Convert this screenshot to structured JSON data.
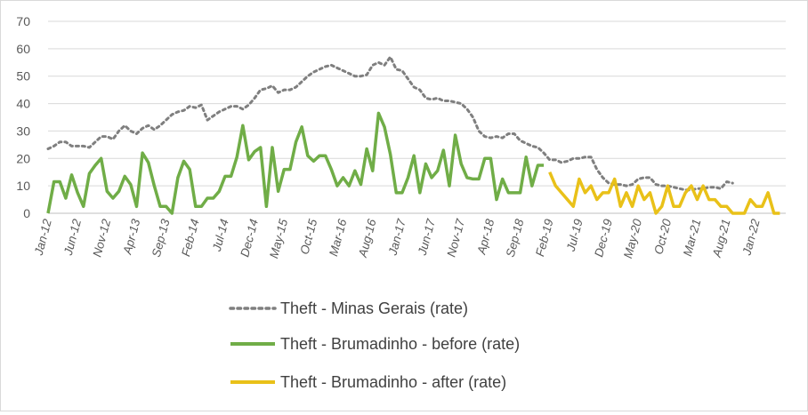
{
  "chart_data": {
    "type": "line",
    "yticks": [
      "0",
      "10",
      "20",
      "30",
      "40",
      "50",
      "60",
      "70"
    ],
    "ylim": [
      0,
      70
    ],
    "x_tick_labels": [
      "Jan-12",
      "Jun-12",
      "Nov-12",
      "Apr-13",
      "Sep-13",
      "Feb-14",
      "Jul-14",
      "Dec-14",
      "May-15",
      "Oct-15",
      "Mar-16",
      "Aug-16",
      "Jan-17",
      "Jun-17",
      "Nov-17",
      "Apr-18",
      "Sep-18",
      "Feb-19",
      "Jul-19",
      "Dec-19",
      "May-20",
      "Oct-20",
      "Mar-21",
      "Aug-21",
      "Jan-22"
    ],
    "months_start": "Jan-12",
    "months_end": "Jun-22",
    "grid": "horizontal",
    "legend_position": "bottom",
    "series": [
      {
        "name": "Theft - Minas Gerais (rate)",
        "color": "#7f7f7f",
        "style": "dotted",
        "x_start": "Jan-12",
        "values": [
          23.5,
          24.5,
          26,
          26,
          24.5,
          24.5,
          24.5,
          24,
          26,
          28,
          28,
          27,
          30,
          32,
          30,
          29,
          31,
          32,
          30.5,
          32,
          34,
          36,
          37,
          37.5,
          39,
          38.5,
          39.5,
          34,
          35.5,
          37,
          38,
          39,
          39,
          38,
          39.5,
          42,
          45,
          45.5,
          46.5,
          44,
          45,
          45,
          46,
          48,
          50,
          51.5,
          52.5,
          53.5,
          54,
          53,
          52,
          51,
          50,
          50,
          50.5,
          54,
          55,
          54,
          57,
          52.5,
          52,
          49,
          46,
          45,
          42,
          41.5,
          42,
          41,
          41,
          40.5,
          40,
          38,
          35,
          30,
          28,
          27.5,
          28,
          27.5,
          29,
          29,
          26.5,
          25.5,
          24.5,
          24,
          22,
          19.5,
          19.5,
          18.5,
          19,
          20,
          20,
          20.5,
          20.5,
          16,
          13,
          11,
          10.5,
          10.5,
          10,
          10.5,
          12.5,
          13,
          13,
          10.5,
          10,
          10,
          9.5,
          9,
          8.5,
          8.5,
          9,
          9,
          9.5,
          9.5,
          9,
          11.5,
          11
        ]
      },
      {
        "name": "Theft - Brumadinho - before (rate)",
        "color": "#70ad47",
        "style": "solid",
        "x_start": "Jan-12",
        "values": [
          0,
          11.5,
          11.5,
          5.5,
          14,
          7.5,
          2.5,
          14.5,
          17.5,
          20,
          8,
          5.5,
          8,
          13.5,
          10.5,
          2.5,
          22,
          18.5,
          10,
          2.5,
          2.5,
          0,
          13,
          19,
          16,
          2.5,
          2.5,
          5.5,
          5.5,
          8,
          13.5,
          13.5,
          20.5,
          32,
          19.5,
          22.5,
          24,
          2.5,
          24,
          8,
          16,
          16,
          26,
          31.5,
          21,
          19,
          21,
          21,
          16,
          10,
          13,
          10,
          15.5,
          10.5,
          23.5,
          15.5,
          36.5,
          31.5,
          21.5,
          7.5,
          7.5,
          13,
          21,
          7.5,
          18,
          13,
          15.5,
          23,
          10,
          28.5,
          18,
          13,
          12.5,
          12.5,
          20,
          20,
          5,
          12.5,
          7.5,
          7.5,
          7.5,
          20.5,
          10,
          17.5,
          17.5
        ]
      },
      {
        "name": "Theft - Brumadinho - after (rate)",
        "color": "#e9c119",
        "style": "solid",
        "x_start": "Feb-19",
        "values": [
          15,
          10,
          7.5,
          5,
          2.5,
          12.5,
          7.5,
          10,
          5,
          7.5,
          7.5,
          12.5,
          2.5,
          7.5,
          2.5,
          10,
          5,
          7.5,
          0,
          2.5,
          10,
          2.5,
          2.5,
          7.5,
          10,
          5,
          10,
          5,
          5,
          2.5,
          2.5,
          0,
          0,
          0,
          5,
          2.5,
          2.5,
          7.5,
          0,
          0
        ]
      }
    ]
  }
}
